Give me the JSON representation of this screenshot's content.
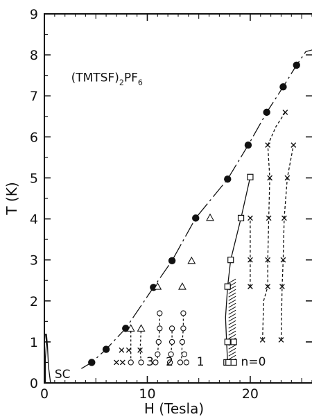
{
  "chart_data": {
    "type": "scatter",
    "xlabel": "H (Tesla)",
    "ylabel": "T (K)",
    "xlim": [
      0,
      26
    ],
    "ylim": [
      0,
      9
    ],
    "x_ticks": [
      "0",
      "10",
      "20"
    ],
    "y_ticks": [
      "0",
      "1",
      "2",
      "3",
      "4",
      "5",
      "6",
      "7",
      "8",
      "9"
    ],
    "compound": {
      "prefix": "(TMTSF)",
      "sub1": "2",
      "mid": "PF",
      "sub2": "6"
    },
    "annotations": {
      "sc": "SC",
      "n3": "3",
      "n2": "2",
      "n1": "1",
      "n0": "n=0"
    },
    "series": [
      {
        "marker": "filled-circle",
        "points": [
          [
            4.6,
            0.5
          ],
          [
            6.0,
            0.82
          ],
          [
            7.9,
            1.33
          ],
          [
            10.6,
            2.33
          ],
          [
            12.4,
            2.98
          ],
          [
            14.7,
            4.02
          ],
          [
            17.8,
            4.97
          ],
          [
            19.8,
            5.8
          ],
          [
            21.6,
            6.6
          ],
          [
            23.2,
            7.22
          ],
          [
            24.5,
            7.75
          ]
        ]
      },
      {
        "marker": "open-triangle",
        "points": [
          [
            8.4,
            1.33
          ],
          [
            9.4,
            1.33
          ],
          [
            11.0,
            2.35
          ],
          [
            13.4,
            2.35
          ],
          [
            14.3,
            2.98
          ],
          [
            16.1,
            4.03
          ]
        ]
      },
      {
        "marker": "open-circle",
        "points": [
          [
            8.4,
            0.5
          ],
          [
            9.4,
            0.5
          ],
          [
            10.8,
            0.5
          ],
          [
            11.0,
            0.7
          ],
          [
            11.1,
            1.0
          ],
          [
            11.2,
            1.33
          ],
          [
            11.2,
            1.7
          ],
          [
            12.2,
            0.5
          ],
          [
            12.3,
            0.7
          ],
          [
            12.4,
            1.0
          ],
          [
            12.4,
            1.33
          ],
          [
            13.2,
            0.5
          ],
          [
            13.4,
            1.0
          ],
          [
            13.5,
            1.33
          ],
          [
            13.5,
            1.7
          ],
          [
            13.6,
            0.7
          ],
          [
            13.8,
            0.5
          ]
        ]
      },
      {
        "marker": "open-square",
        "points": [
          [
            17.7,
            0.5
          ],
          [
            17.9,
            0.5
          ],
          [
            18.4,
            0.5
          ],
          [
            17.8,
            1.0
          ],
          [
            18.4,
            1.0
          ],
          [
            17.8,
            2.35
          ],
          [
            18.1,
            3.0
          ],
          [
            19.1,
            4.02
          ],
          [
            20.0,
            5.02
          ]
        ]
      },
      {
        "marker": "cross",
        "points": [
          [
            7.0,
            0.5
          ],
          [
            7.6,
            0.5
          ],
          [
            7.5,
            0.8
          ],
          [
            8.2,
            0.8
          ],
          [
            9.3,
            0.8
          ],
          [
            20.0,
            4.02
          ],
          [
            20.0,
            3.0
          ],
          [
            20.0,
            2.35
          ],
          [
            21.2,
            1.05
          ],
          [
            21.7,
            2.35
          ],
          [
            21.7,
            3.0
          ],
          [
            21.8,
            4.02
          ],
          [
            21.9,
            5.0
          ],
          [
            21.7,
            5.8
          ],
          [
            23.0,
            1.05
          ],
          [
            23.1,
            2.35
          ],
          [
            23.2,
            3.0
          ],
          [
            23.3,
            4.02
          ],
          [
            23.6,
            5.0
          ],
          [
            24.2,
            5.8
          ],
          [
            23.4,
            6.6
          ]
        ]
      }
    ]
  }
}
